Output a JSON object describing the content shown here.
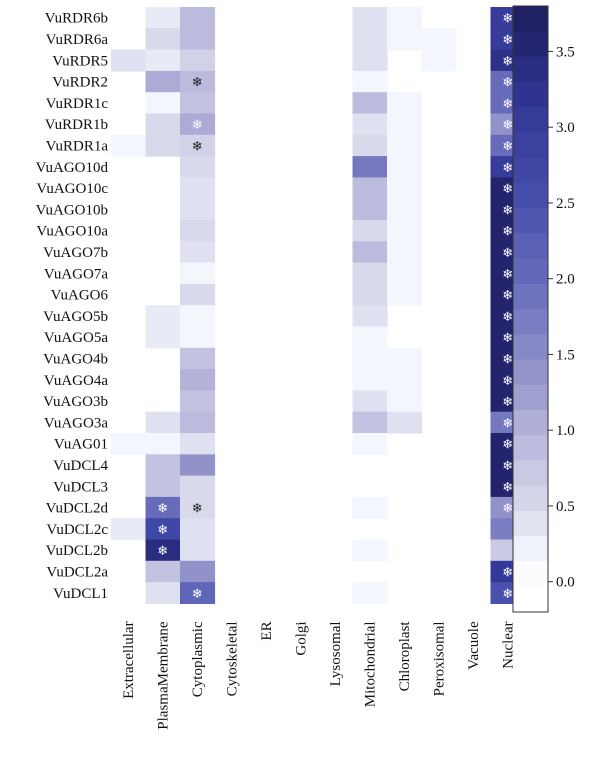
{
  "chart_data": {
    "type": "heatmap",
    "title": "",
    "xlabel": "",
    "ylabel": "",
    "rows": [
      "VuRDR6b",
      "VuRDR6a",
      "VuRDR5",
      "VuRDR2",
      "VuRDR1c",
      "VuRDR1b",
      "VuRDR1a",
      "VuAGO10d",
      "VuAGO10c",
      "VuAGO10b",
      "VuAGO10a",
      "VuAGO7b",
      "VuAGO7a",
      "VuAGO6",
      "VuAGO5b",
      "VuAGO5a",
      "VuAGO4b",
      "VuAGO4a",
      "VuAGO3b",
      "VuAGO3a",
      "VuAG01",
      "VuDCL4",
      "VuDCL3",
      "VuDCL2d",
      "VuDCL2c",
      "VuDCL2b",
      "VuDCL2a",
      "VuDCL1"
    ],
    "columns": [
      "Extracellular",
      "PlasmaMembrane",
      "Cytoplasmic",
      "Cytoskeletal",
      "ER",
      "Golgi",
      "Lysosomal",
      "Mitochondrial",
      "Chloroplast",
      "Peroxisomal",
      "Vacuole",
      "Nuclear"
    ],
    "values": [
      [
        0,
        0.3,
        0.9,
        0,
        0,
        0,
        0,
        0.4,
        0.15,
        0,
        0,
        3.0
      ],
      [
        0,
        0.5,
        0.9,
        0,
        0,
        0,
        0,
        0.4,
        0.15,
        0.15,
        0,
        3.0
      ],
      [
        0.4,
        0.3,
        0.6,
        0,
        0,
        0,
        0,
        0.4,
        0,
        0.15,
        0,
        3.3
      ],
      [
        0,
        1.1,
        0.9,
        0,
        0,
        0,
        0,
        0.15,
        0,
        0,
        0,
        2.0
      ],
      [
        0,
        0.15,
        0.8,
        0,
        0,
        0,
        0,
        0.9,
        0.15,
        0,
        0,
        2.0
      ],
      [
        0,
        0.5,
        1.1,
        0,
        0,
        0,
        0,
        0.4,
        0.15,
        0,
        0,
        1.4
      ],
      [
        0.15,
        0.5,
        0.6,
        0,
        0,
        0,
        0,
        0.5,
        0.15,
        0,
        0,
        2.0
      ],
      [
        0,
        0,
        0.5,
        0,
        0,
        0,
        0,
        1.8,
        0.15,
        0,
        0,
        3.0
      ],
      [
        0,
        0,
        0.4,
        0,
        0,
        0,
        0,
        0.9,
        0.15,
        0,
        0,
        3.6
      ],
      [
        0,
        0,
        0.4,
        0,
        0,
        0,
        0,
        0.9,
        0.15,
        0,
        0,
        3.6
      ],
      [
        0,
        0,
        0.5,
        0,
        0,
        0,
        0,
        0.5,
        0.15,
        0,
        0,
        3.6
      ],
      [
        0,
        0,
        0.4,
        0,
        0,
        0,
        0,
        0.9,
        0.15,
        0,
        0,
        3.6
      ],
      [
        0,
        0,
        0.15,
        0,
        0,
        0,
        0,
        0.5,
        0.15,
        0,
        0,
        3.6
      ],
      [
        0,
        0,
        0.5,
        0,
        0,
        0,
        0,
        0.5,
        0.15,
        0,
        0,
        3.6
      ],
      [
        0,
        0.3,
        0.15,
        0,
        0,
        0,
        0,
        0.4,
        0,
        0,
        0,
        3.6
      ],
      [
        0,
        0.3,
        0.15,
        0,
        0,
        0,
        0,
        0.15,
        0,
        0,
        0,
        3.6
      ],
      [
        0,
        0,
        0.8,
        0,
        0,
        0,
        0,
        0.15,
        0.15,
        0,
        0,
        3.6
      ],
      [
        0,
        0,
        1.0,
        0,
        0,
        0,
        0,
        0.15,
        0.15,
        0,
        0,
        3.6
      ],
      [
        0,
        0,
        0.8,
        0,
        0,
        0,
        0,
        0.4,
        0.15,
        0,
        0,
        3.6
      ],
      [
        0,
        0.4,
        0.9,
        0,
        0,
        0,
        0,
        0.8,
        0.4,
        0,
        0,
        1.8
      ],
      [
        0.15,
        0.15,
        0.4,
        0,
        0,
        0,
        0,
        0.15,
        0,
        0,
        0,
        3.6
      ],
      [
        0,
        0.8,
        1.4,
        0,
        0,
        0,
        0,
        0,
        0,
        0,
        0,
        3.6
      ],
      [
        0,
        0.8,
        0.5,
        0,
        0,
        0,
        0,
        0,
        0,
        0,
        0,
        3.6
      ],
      [
        0,
        2.0,
        0.5,
        0,
        0,
        0,
        0,
        0.15,
        0,
        0,
        0,
        1.4
      ],
      [
        0.3,
        2.7,
        0.4,
        0,
        0,
        0,
        0,
        0,
        0,
        0,
        0,
        1.7
      ],
      [
        0,
        3.4,
        0.4,
        0,
        0,
        0,
        0,
        0.15,
        0,
        0,
        0,
        0.7
      ],
      [
        0,
        0.8,
        1.4,
        0,
        0,
        0,
        0,
        0,
        0,
        0,
        0,
        3.1
      ],
      [
        0,
        0.4,
        2.1,
        0,
        0,
        0,
        0,
        0.15,
        0,
        0,
        0,
        2.5
      ]
    ],
    "asterisks": [
      [
        0,
        11
      ],
      [
        1,
        11
      ],
      [
        2,
        11
      ],
      [
        3,
        2
      ],
      [
        3,
        11
      ],
      [
        4,
        11
      ],
      [
        5,
        2
      ],
      [
        5,
        11
      ],
      [
        6,
        2
      ],
      [
        6,
        11
      ],
      [
        7,
        11
      ],
      [
        8,
        11
      ],
      [
        9,
        11
      ],
      [
        10,
        11
      ],
      [
        11,
        11
      ],
      [
        12,
        11
      ],
      [
        13,
        11
      ],
      [
        14,
        11
      ],
      [
        15,
        11
      ],
      [
        16,
        11
      ],
      [
        17,
        11
      ],
      [
        18,
        11
      ],
      [
        19,
        11
      ],
      [
        20,
        11
      ],
      [
        21,
        11
      ],
      [
        22,
        11
      ],
      [
        23,
        1
      ],
      [
        23,
        2
      ],
      [
        23,
        11
      ],
      [
        24,
        1
      ],
      [
        25,
        1
      ],
      [
        26,
        11
      ],
      [
        27,
        2
      ],
      [
        27,
        11
      ]
    ],
    "asterisk_symbol": "❄",
    "colorbar": {
      "min": -0.2,
      "max": 3.8,
      "ticks": [
        3.5,
        3.0,
        2.5,
        2.0,
        1.5,
        1.0,
        0.5,
        0.0
      ],
      "tick_labels": [
        "3.5",
        "3.0",
        "2.5",
        "2.0",
        "1.5",
        "1.0",
        "0.5",
        "0.0"
      ],
      "low_color": "#ffffff",
      "high_color": "#1f1f66"
    },
    "grid": false
  }
}
